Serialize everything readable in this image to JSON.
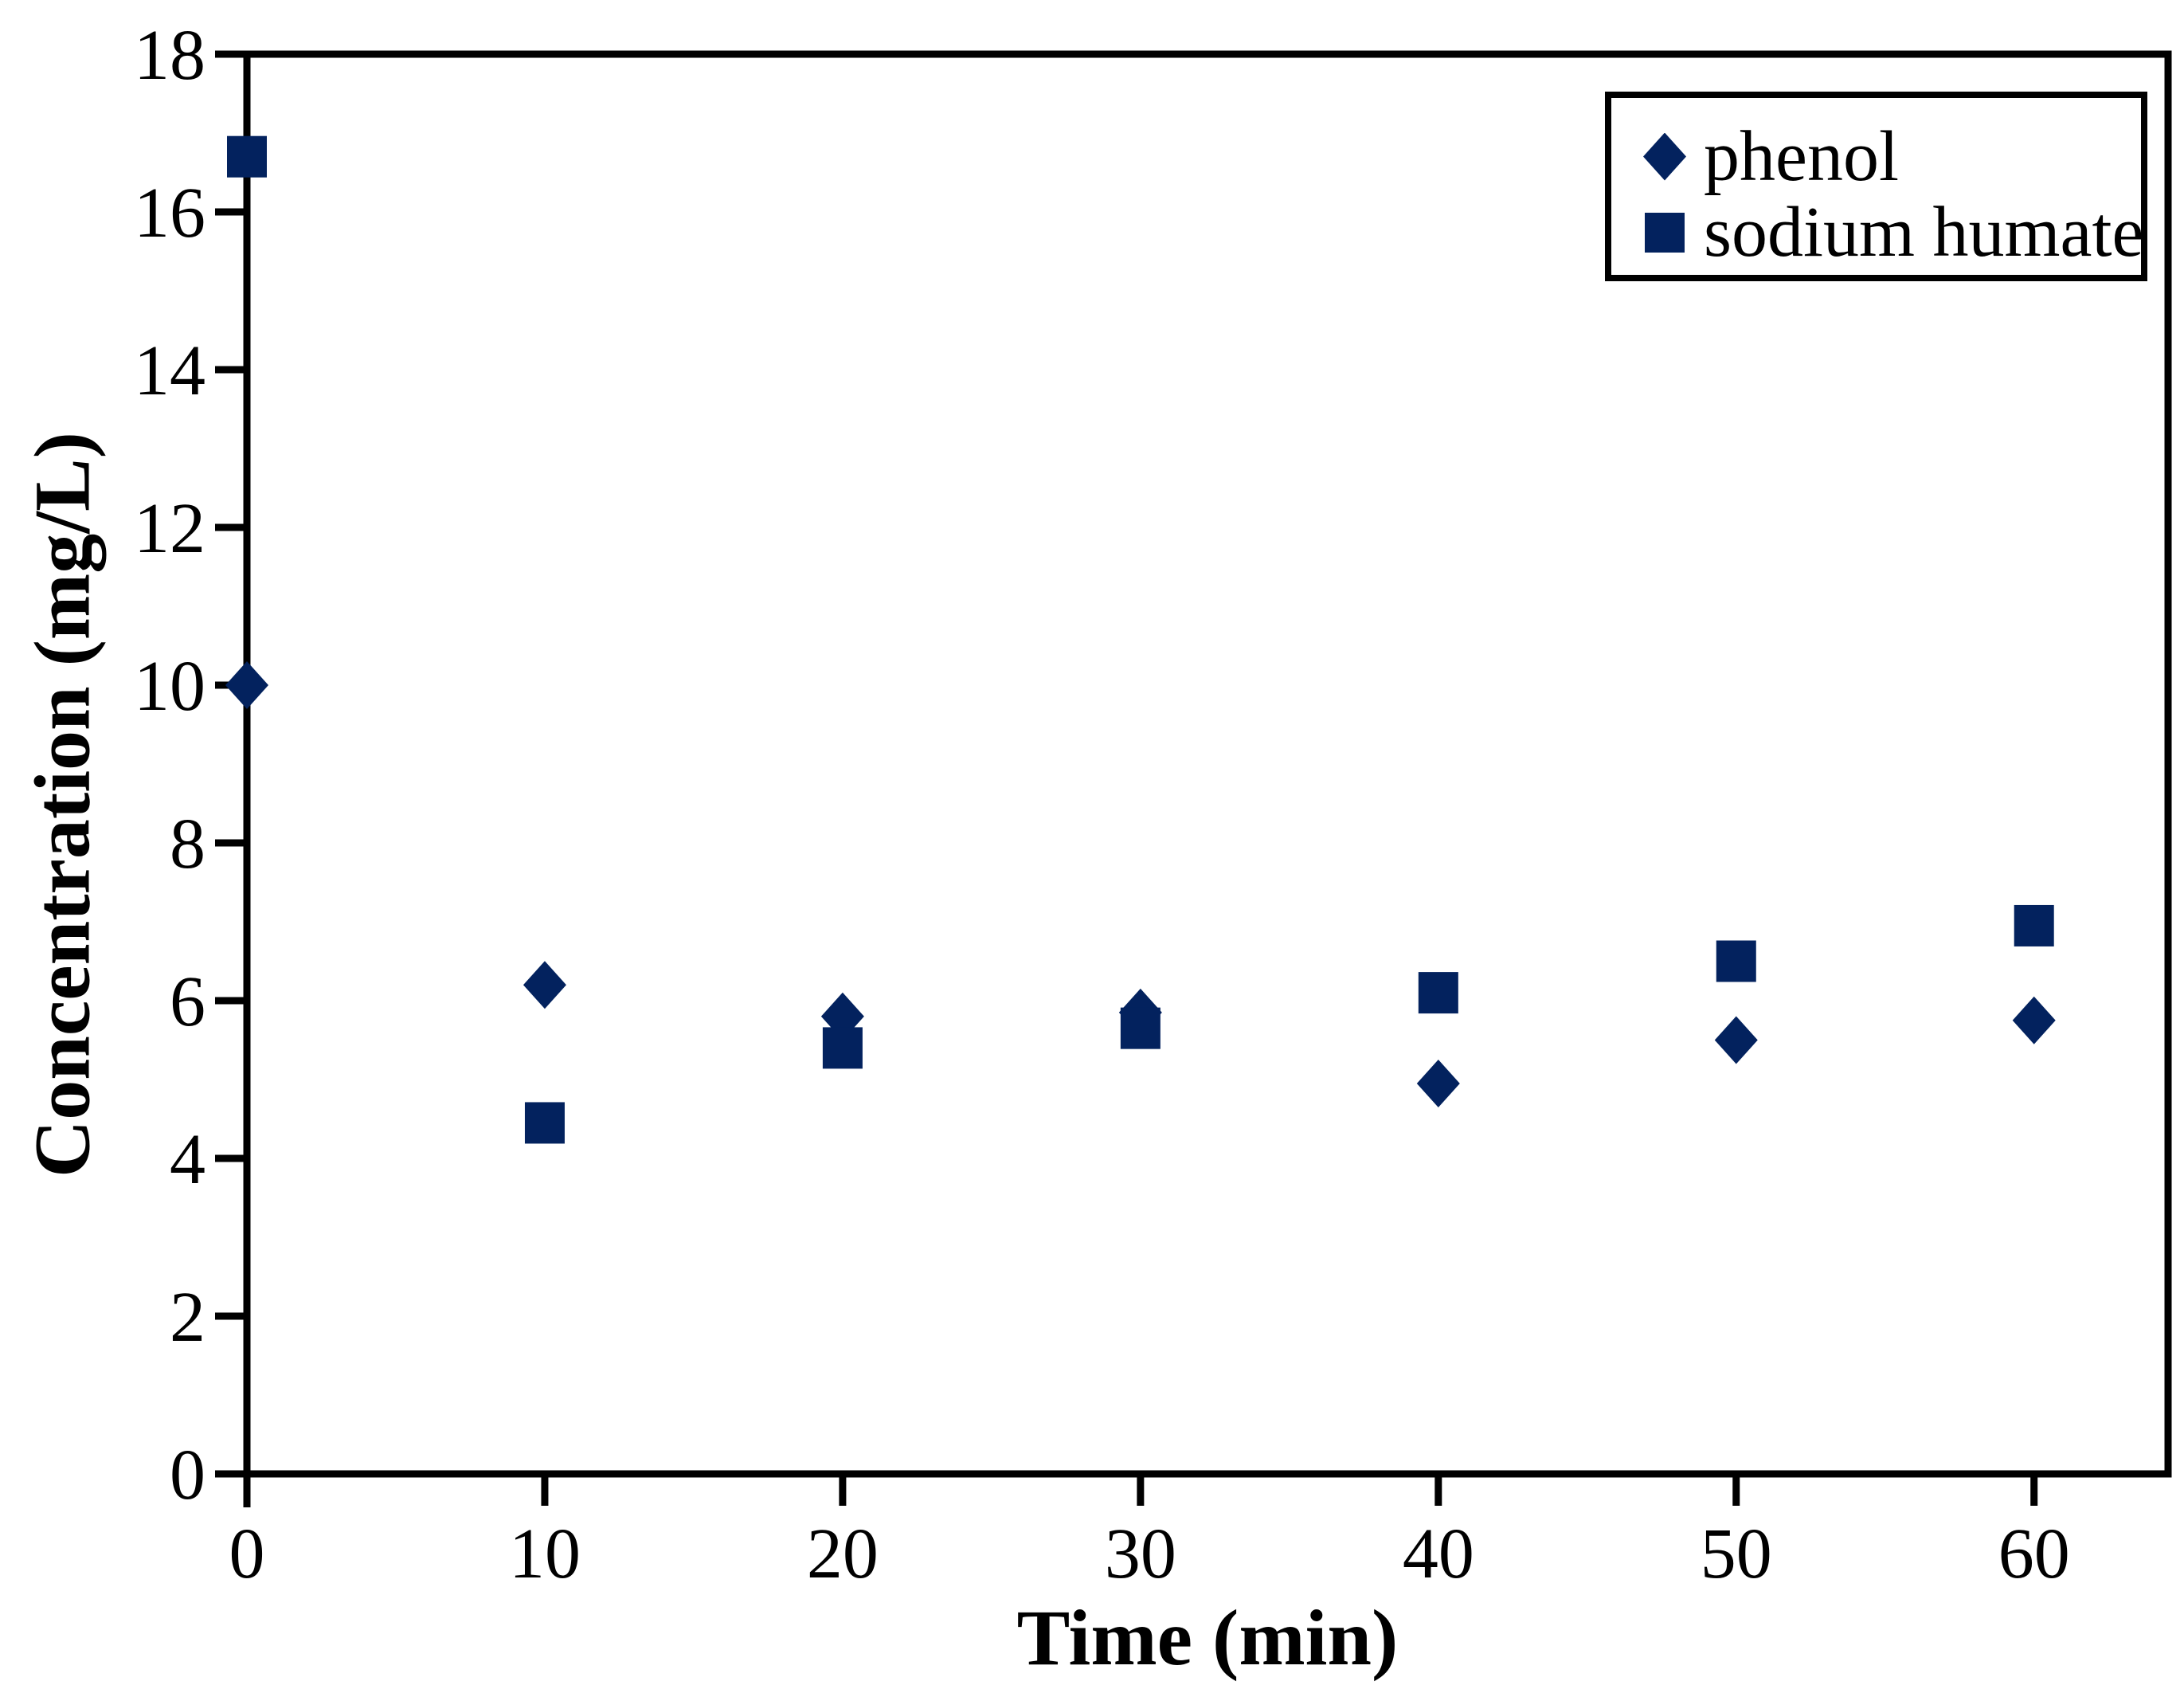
{
  "chart_data": {
    "type": "scatter",
    "title": "",
    "xlabel": "Time (min)",
    "ylabel": "Concentration (mg/L)",
    "xlim": [
      0,
      64.5
    ],
    "ylim": [
      0,
      18
    ],
    "x_ticks": [
      0,
      10,
      20,
      30,
      40,
      50,
      60
    ],
    "y_ticks": [
      0,
      2,
      4,
      6,
      8,
      10,
      12,
      14,
      16,
      18
    ],
    "grid": false,
    "legend_position": "top-right",
    "background_color": "#ffffff",
    "axis_color": "#000000",
    "series": [
      {
        "name": "phenol",
        "marker": "diamond",
        "color": "#03225e",
        "x": [
          0,
          10,
          20,
          30,
          40,
          50,
          60
        ],
        "y": [
          10.0,
          6.2,
          5.8,
          5.85,
          4.95,
          5.5,
          5.75
        ]
      },
      {
        "name": "sodium humate",
        "marker": "square",
        "color": "#03225e",
        "x": [
          0,
          10,
          20,
          30,
          40,
          50,
          60
        ],
        "y": [
          16.7,
          4.45,
          5.4,
          5.65,
          6.1,
          6.5,
          6.95
        ]
      }
    ]
  }
}
